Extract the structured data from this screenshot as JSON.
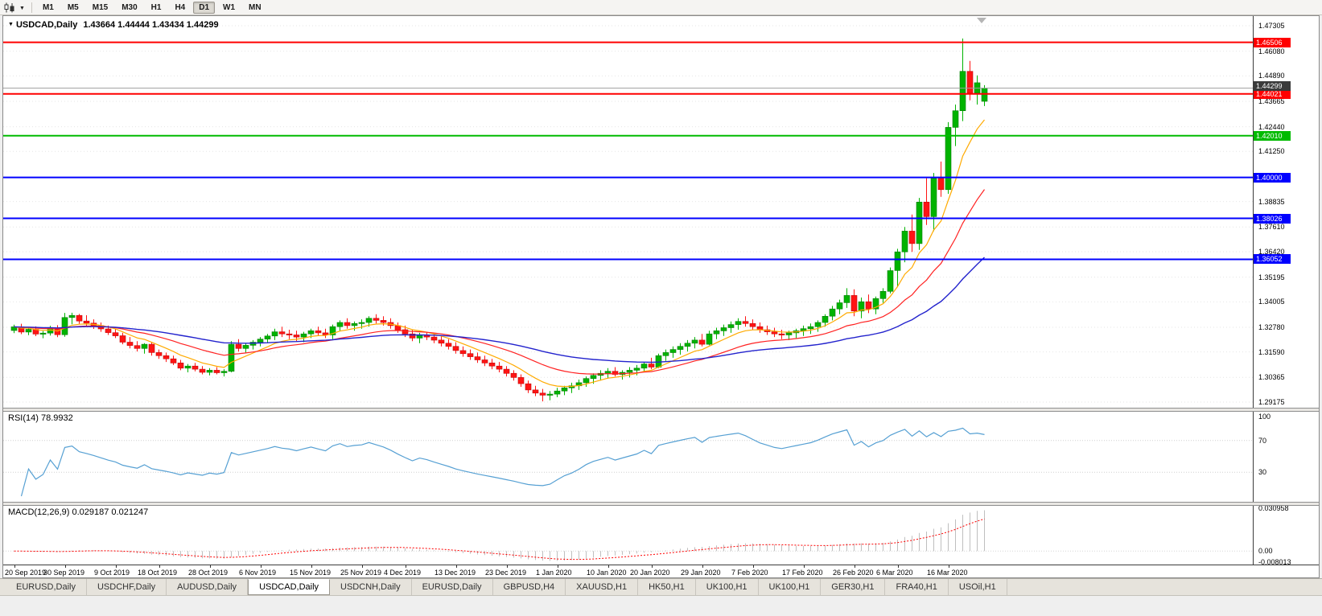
{
  "toolbar": {
    "timeframes": [
      "M1",
      "M5",
      "M15",
      "M30",
      "H1",
      "H4",
      "D1",
      "W1",
      "MN"
    ],
    "active_timeframe": "D1",
    "chart_icon": "candlestick-chart-icon",
    "dropdown_caret": "▼"
  },
  "chart": {
    "title_symbol": "USDCAD,Daily",
    "title_ohlc": "1.43664 1.44444 1.43434 1.44299",
    "bid_price": "1.44299",
    "price_axis_labels": [
      "1.47305",
      "1.46080",
      "1.44890",
      "1.43665",
      "1.42440",
      "1.41250",
      "1.40000",
      "1.38835",
      "1.37610",
      "1.36420",
      "1.35195",
      "1.34005",
      "1.32780",
      "1.31590",
      "1.30365",
      "1.29175"
    ],
    "date_labels": [
      "20 Sep 2019",
      "30 Sep 2019",
      "9 Oct 2019",
      "18 Oct 2019",
      "28 Oct 2019",
      "6 Nov 2019",
      "15 Nov 2019",
      "25 Nov 2019",
      "4 Dec 2019",
      "13 Dec 2019",
      "23 Dec 2019",
      "1 Jan 2020",
      "10 Jan 2020",
      "20 Jan 2020",
      "29 Jan 2020",
      "7 Feb 2020",
      "17 Feb 2020",
      "26 Feb 2020",
      "6 Mar 2020",
      "16 Mar 2020"
    ]
  },
  "rsi": {
    "label": "RSI(14) 78.9932",
    "levels": [
      "100",
      "70",
      "30"
    ],
    "level_values": [
      100,
      70,
      30
    ]
  },
  "macd": {
    "label": "MACD(12,26,9) 0.029187 0.021247",
    "axis_labels": [
      "0.030958",
      "0.00",
      "-0.008013"
    ],
    "axis_values": [
      0.030958,
      0,
      -0.008013
    ],
    "max": 0.030958,
    "min": -0.008013
  },
  "tabs": [
    {
      "label": "EURUSD,Daily",
      "active": false
    },
    {
      "label": "USDCHF,Daily",
      "active": false
    },
    {
      "label": "AUDUSD,Daily",
      "active": false
    },
    {
      "label": "USDCAD,Daily",
      "active": true
    },
    {
      "label": "USDCNH,Daily",
      "active": false
    },
    {
      "label": "EURUSD,Daily",
      "active": false
    },
    {
      "label": "GBPUSD,H4",
      "active": false
    },
    {
      "label": "XAUUSD,H1",
      "active": false
    },
    {
      "label": "HK50,H1",
      "active": false
    },
    {
      "label": "UK100,H1",
      "active": false
    },
    {
      "label": "UK100,H1",
      "active": false
    },
    {
      "label": "GER30,H1",
      "active": false
    },
    {
      "label": "FRA40,H1",
      "active": false
    },
    {
      "label": "USOil,H1",
      "active": false
    }
  ],
  "colors": {
    "bull_candle": "#00b300",
    "bear_candle": "#ff1414",
    "ma_fast": "#ffaa00",
    "ma_mid": "#ff2222",
    "ma_slow": "#2323cd",
    "rsi_line": "#56a0d3",
    "macd_histogram": "#bfbfbf",
    "macd_signal": "#ff0000",
    "resistance_line": "#ff0000",
    "pivot_line": "#00bb00",
    "support_line": "#0000ff",
    "bid_flag_bg": "#3b3b3b"
  },
  "chart_data": {
    "type": "candlestick",
    "symbol": "USDCAD",
    "period": "Daily",
    "x_range": [
      "20 Sep 2019",
      "20 Mar 2020"
    ],
    "y_range": [
      1.29175,
      1.47305
    ],
    "current_ohlc": {
      "open": "1.43664",
      "high": "1.44444",
      "low": "1.43434",
      "close": "1.44299"
    },
    "hlines": [
      {
        "price": 1.46506,
        "label": "1.46506",
        "color": "#ff0000"
      },
      {
        "price": 1.44021,
        "label": "1.44021",
        "color": "#ff0000"
      },
      {
        "price": 1.4201,
        "label": "1.42010",
        "color": "#00bb00"
      },
      {
        "price": 1.4,
        "label": "1.40000",
        "color": "#0000ff"
      },
      {
        "price": 1.38026,
        "label": "1.38026",
        "color": "#0000ff"
      },
      {
        "price": 1.36052,
        "label": "1.36052",
        "color": "#0000ff"
      }
    ],
    "overlays": [
      {
        "name": "ma-fast",
        "type": "ema",
        "period": 8,
        "color": "#ffaa00"
      },
      {
        "name": "ma-mid",
        "type": "ema",
        "period": 21,
        "color": "#ff2222"
      },
      {
        "name": "ma-slow",
        "type": "ema",
        "period": 50,
        "color": "#2323cd"
      }
    ],
    "indicators": [
      {
        "name": "RSI",
        "params": "14",
        "last_value": "78.9932"
      },
      {
        "name": "MACD",
        "params": "12,26,9",
        "last_values": [
          "0.029187",
          "0.021247"
        ]
      }
    ],
    "candles_ohlc": [
      [
        1.3262,
        1.329,
        1.325,
        1.328
      ],
      [
        1.328,
        1.3295,
        1.3245,
        1.3255
      ],
      [
        1.3255,
        1.3275,
        1.324,
        1.3268
      ],
      [
        1.3268,
        1.3282,
        1.3235,
        1.3245
      ],
      [
        1.3245,
        1.326,
        1.3225,
        1.325
      ],
      [
        1.325,
        1.3285,
        1.3238,
        1.3272
      ],
      [
        1.3272,
        1.3288,
        1.323,
        1.3242
      ],
      [
        1.3242,
        1.3347,
        1.3232,
        1.3325
      ],
      [
        1.3325,
        1.3348,
        1.3292,
        1.3335
      ],
      [
        1.3335,
        1.3342,
        1.3295,
        1.3308
      ],
      [
        1.3308,
        1.3336,
        1.3282,
        1.3298
      ],
      [
        1.3298,
        1.3316,
        1.327,
        1.3286
      ],
      [
        1.3286,
        1.3301,
        1.3256,
        1.327
      ],
      [
        1.327,
        1.3286,
        1.3241,
        1.3252
      ],
      [
        1.3252,
        1.3271,
        1.3226,
        1.3237
      ],
      [
        1.3237,
        1.3251,
        1.3196,
        1.3206
      ],
      [
        1.3206,
        1.3231,
        1.3176,
        1.319
      ],
      [
        1.319,
        1.3211,
        1.3161,
        1.3176
      ],
      [
        1.3176,
        1.3201,
        1.3151,
        1.3196
      ],
      [
        1.3196,
        1.3206,
        1.3141,
        1.3156
      ],
      [
        1.3156,
        1.3171,
        1.3126,
        1.3141
      ],
      [
        1.3141,
        1.3156,
        1.3111,
        1.3126
      ],
      [
        1.3126,
        1.3141,
        1.3096,
        1.3106
      ],
      [
        1.3106,
        1.3121,
        1.3071,
        1.3081
      ],
      [
        1.3081,
        1.3101,
        1.3061,
        1.3091
      ],
      [
        1.3091,
        1.3106,
        1.3066,
        1.3076
      ],
      [
        1.3076,
        1.3091,
        1.3051,
        1.3061
      ],
      [
        1.3061,
        1.3081,
        1.3046,
        1.3071
      ],
      [
        1.3071,
        1.3086,
        1.3051,
        1.3059
      ],
      [
        1.3059,
        1.3076,
        1.3041,
        1.3066
      ],
      [
        1.3066,
        1.3211,
        1.3061,
        1.3196
      ],
      [
        1.3196,
        1.3221,
        1.3161,
        1.3176
      ],
      [
        1.3176,
        1.3201,
        1.3156,
        1.3191
      ],
      [
        1.3191,
        1.3216,
        1.3171,
        1.3206
      ],
      [
        1.3206,
        1.3231,
        1.3186,
        1.3221
      ],
      [
        1.3221,
        1.3246,
        1.3201,
        1.3236
      ],
      [
        1.3236,
        1.3271,
        1.3216,
        1.3256
      ],
      [
        1.3256,
        1.3281,
        1.3231,
        1.3246
      ],
      [
        1.3246,
        1.3266,
        1.3221,
        1.3241
      ],
      [
        1.3241,
        1.3261,
        1.3211,
        1.3231
      ],
      [
        1.3231,
        1.3256,
        1.3206,
        1.3246
      ],
      [
        1.3246,
        1.3271,
        1.3226,
        1.3261
      ],
      [
        1.3261,
        1.3281,
        1.3236,
        1.3251
      ],
      [
        1.3251,
        1.3271,
        1.3226,
        1.3241
      ],
      [
        1.3241,
        1.3291,
        1.3221,
        1.3281
      ],
      [
        1.3281,
        1.3311,
        1.3261,
        1.3301
      ],
      [
        1.3301,
        1.3321,
        1.3271,
        1.3286
      ],
      [
        1.3286,
        1.3306,
        1.3261,
        1.3296
      ],
      [
        1.3296,
        1.3316,
        1.3271,
        1.3301
      ],
      [
        1.3301,
        1.3331,
        1.3281,
        1.3321
      ],
      [
        1.3321,
        1.3341,
        1.3296,
        1.3311
      ],
      [
        1.3311,
        1.3331,
        1.3286,
        1.3301
      ],
      [
        1.3301,
        1.3321,
        1.3271,
        1.3286
      ],
      [
        1.3286,
        1.3301,
        1.3251,
        1.3266
      ],
      [
        1.3266,
        1.3286,
        1.3231,
        1.3246
      ],
      [
        1.3246,
        1.3266,
        1.3211,
        1.3226
      ],
      [
        1.3226,
        1.3251,
        1.3201,
        1.3241
      ],
      [
        1.3241,
        1.3256,
        1.3216,
        1.3231
      ],
      [
        1.3231,
        1.3246,
        1.3201,
        1.3216
      ],
      [
        1.3216,
        1.3236,
        1.3186,
        1.3201
      ],
      [
        1.3201,
        1.3221,
        1.3171,
        1.3186
      ],
      [
        1.3186,
        1.3206,
        1.3151,
        1.3166
      ],
      [
        1.3166,
        1.3186,
        1.3136,
        1.3151
      ],
      [
        1.3151,
        1.3171,
        1.3121,
        1.3136
      ],
      [
        1.3136,
        1.3156,
        1.3106,
        1.3121
      ],
      [
        1.3121,
        1.3141,
        1.3091,
        1.3106
      ],
      [
        1.3106,
        1.3126,
        1.3076,
        1.3091
      ],
      [
        1.3091,
        1.3111,
        1.3061,
        1.3076
      ],
      [
        1.3076,
        1.3091,
        1.3041,
        1.3056
      ],
      [
        1.3056,
        1.3071,
        1.3021,
        1.3036
      ],
      [
        1.3036,
        1.3051,
        1.2991,
        1.3006
      ],
      [
        1.3006,
        1.3021,
        1.2961,
        1.2976
      ],
      [
        1.2976,
        1.2996,
        1.2946,
        1.2961
      ],
      [
        1.2961,
        1.2981,
        1.2921,
        1.2951
      ],
      [
        1.2951,
        1.2971,
        1.2926,
        1.2956
      ],
      [
        1.2956,
        1.2986,
        1.2941,
        1.2971
      ],
      [
        1.2971,
        1.2996,
        1.2951,
        1.2986
      ],
      [
        1.2986,
        1.3011,
        1.2961,
        1.2996
      ],
      [
        1.2996,
        1.3026,
        1.2976,
        1.3011
      ],
      [
        1.3011,
        1.3041,
        1.2991,
        1.3031
      ],
      [
        1.3031,
        1.3056,
        1.3006,
        1.3046
      ],
      [
        1.3046,
        1.3071,
        1.3021,
        1.3056
      ],
      [
        1.3056,
        1.3081,
        1.3031,
        1.3066
      ],
      [
        1.3066,
        1.3086,
        1.3041,
        1.3051
      ],
      [
        1.3051,
        1.3071,
        1.3026,
        1.3061
      ],
      [
        1.3061,
        1.3086,
        1.3036,
        1.3071
      ],
      [
        1.3071,
        1.3096,
        1.3046,
        1.3081
      ],
      [
        1.3081,
        1.3111,
        1.3061,
        1.3101
      ],
      [
        1.3101,
        1.3131,
        1.3076,
        1.3086
      ],
      [
        1.3086,
        1.3151,
        1.3081,
        1.3141
      ],
      [
        1.3141,
        1.3171,
        1.3116,
        1.3156
      ],
      [
        1.3156,
        1.3186,
        1.3131,
        1.3171
      ],
      [
        1.3171,
        1.3201,
        1.3146,
        1.3186
      ],
      [
        1.3186,
        1.3216,
        1.3161,
        1.3201
      ],
      [
        1.3201,
        1.3231,
        1.3176,
        1.3216
      ],
      [
        1.3216,
        1.3246,
        1.3186,
        1.3196
      ],
      [
        1.3196,
        1.3261,
        1.3191,
        1.3246
      ],
      [
        1.3246,
        1.3276,
        1.3221,
        1.3261
      ],
      [
        1.3261,
        1.3291,
        1.3236,
        1.3276
      ],
      [
        1.3276,
        1.3306,
        1.3251,
        1.3291
      ],
      [
        1.3291,
        1.3321,
        1.3266,
        1.3306
      ],
      [
        1.3306,
        1.3331,
        1.3281,
        1.3296
      ],
      [
        1.3296,
        1.3316,
        1.3266,
        1.3281
      ],
      [
        1.3281,
        1.3301,
        1.3251,
        1.3266
      ],
      [
        1.3266,
        1.3286,
        1.3241,
        1.3256
      ],
      [
        1.3256,
        1.3276,
        1.3231,
        1.3246
      ],
      [
        1.3246,
        1.3266,
        1.3221,
        1.3241
      ],
      [
        1.3241,
        1.3261,
        1.3216,
        1.3251
      ],
      [
        1.3251,
        1.3271,
        1.3226,
        1.3261
      ],
      [
        1.3261,
        1.3286,
        1.3236,
        1.3271
      ],
      [
        1.3271,
        1.3296,
        1.3246,
        1.3281
      ],
      [
        1.3281,
        1.3311,
        1.3256,
        1.3301
      ],
      [
        1.3301,
        1.3341,
        1.3281,
        1.3331
      ],
      [
        1.3331,
        1.3381,
        1.3311,
        1.3366
      ],
      [
        1.3366,
        1.3411,
        1.3341,
        1.3396
      ],
      [
        1.3396,
        1.3466,
        1.3371,
        1.3431
      ],
      [
        1.3431,
        1.3461,
        1.3331,
        1.3356
      ],
      [
        1.3356,
        1.3421,
        1.3321,
        1.3401
      ],
      [
        1.3401,
        1.3436,
        1.3346,
        1.3366
      ],
      [
        1.3366,
        1.3426,
        1.3341,
        1.3416
      ],
      [
        1.3416,
        1.3466,
        1.3396,
        1.3451
      ],
      [
        1.3451,
        1.3566,
        1.3441,
        1.3551
      ],
      [
        1.3551,
        1.3656,
        1.3471,
        1.3641
      ],
      [
        1.3641,
        1.3761,
        1.3591,
        1.3741
      ],
      [
        1.3741,
        1.3821,
        1.3641,
        1.3681
      ],
      [
        1.3681,
        1.3901,
        1.3651,
        1.3881
      ],
      [
        1.3881,
        1.3996,
        1.3771,
        1.3811
      ],
      [
        1.3811,
        1.4021,
        1.3741,
        1.3996
      ],
      [
        1.3996,
        1.4076,
        1.3906,
        1.3941
      ],
      [
        1.3941,
        1.4266,
        1.3921,
        1.4241
      ],
      [
        1.4241,
        1.4351,
        1.4151,
        1.4321
      ],
      [
        1.4321,
        1.4669,
        1.4271,
        1.4511
      ],
      [
        1.4511,
        1.4561,
        1.4371,
        1.4406
      ],
      [
        1.4406,
        1.4491,
        1.4351,
        1.4456
      ],
      [
        1.43664,
        1.44444,
        1.43434,
        1.44299
      ]
    ]
  }
}
